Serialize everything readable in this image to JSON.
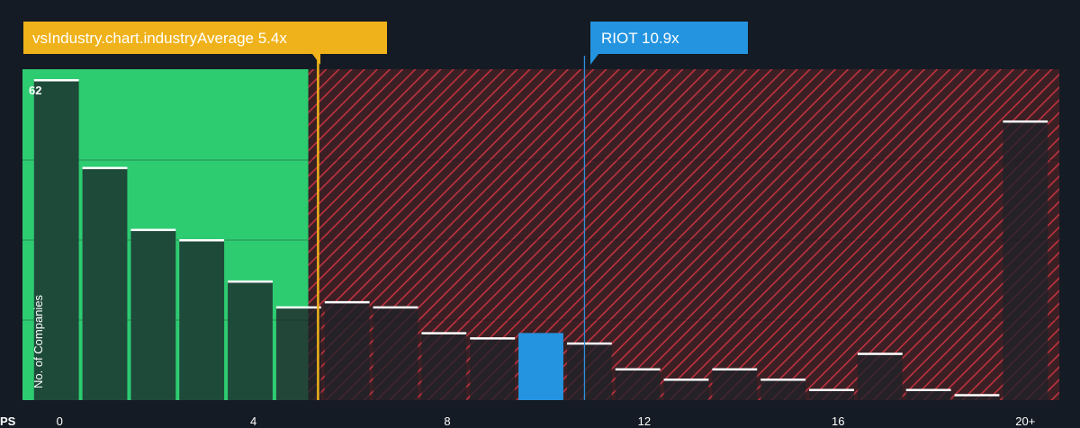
{
  "chart_data": {
    "type": "bar",
    "xlabel": "PS",
    "ylabel": "No. of Companies",
    "x_ticks": [
      "0",
      "4",
      "8",
      "12",
      "16",
      "20+"
    ],
    "x_tick_values": [
      0,
      4,
      8,
      12,
      16,
      20
    ],
    "y_max_label": "62",
    "xlim": [
      -0.7,
      20.7
    ],
    "ylim": [
      0,
      62
    ],
    "bin_width": 1,
    "bins": [
      {
        "x": 0,
        "value": 62
      },
      {
        "x": 1,
        "value": 45
      },
      {
        "x": 2,
        "value": 33
      },
      {
        "x": 3,
        "value": 31
      },
      {
        "x": 4,
        "value": 23
      },
      {
        "x": 5,
        "value": 18
      },
      {
        "x": 6,
        "value": 19
      },
      {
        "x": 7,
        "value": 18
      },
      {
        "x": 8,
        "value": 13
      },
      {
        "x": 9,
        "value": 12
      },
      {
        "x": 10,
        "value": 13
      },
      {
        "x": 11,
        "value": 11
      },
      {
        "x": 12,
        "value": 6
      },
      {
        "x": 13,
        "value": 4
      },
      {
        "x": 14,
        "value": 6
      },
      {
        "x": 15,
        "value": 4
      },
      {
        "x": 16,
        "value": 2
      },
      {
        "x": 17,
        "value": 9
      },
      {
        "x": 18,
        "value": 2
      },
      {
        "x": 19,
        "value": 1
      },
      {
        "x": 20,
        "value": 54
      }
    ],
    "industry_average": {
      "value": 5.4,
      "label": "vsIndustry.chart.industryAverage 5.4x"
    },
    "company": {
      "value": 10.9,
      "label": "RIOT 10.9x",
      "bin_x": 10
    },
    "fair_zone_end": 5.2,
    "grid": true,
    "colors": {
      "background": "#151b24",
      "fair_zone": "#2ecc71",
      "fair_bar": "#1e4a3a",
      "over_zone": "#3a2024",
      "hatch": "#c0323f",
      "over_bar": "#1f2128",
      "company_bar": "#2494e0",
      "industry_line": "#f0b21a",
      "company_line": "#2f8fe0",
      "bar_top": "#ffffff"
    }
  }
}
